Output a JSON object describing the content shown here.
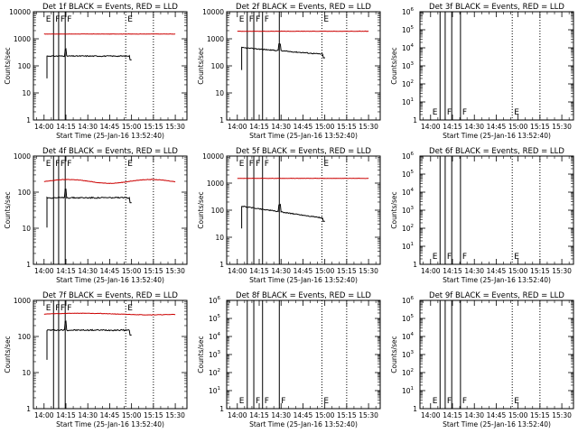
{
  "common": {
    "xlabel": "Start Time (25-Jan-16 13:52:40)",
    "ylabel": "Counts/sec",
    "x_ticks": [
      "14:00",
      "14:15",
      "14:30",
      "14:45",
      "15:00",
      "15:15",
      "15:30"
    ],
    "line_colors": {
      "events": "#000000",
      "lld": "#cc0000"
    }
  },
  "chart_data": [
    {
      "type": "line",
      "title": "Det 1f BLACK = Events, RED = LLD",
      "scale": "log",
      "ylim": [
        1,
        10000
      ],
      "y_ticks": [
        "1",
        "10",
        "100",
        "1000",
        "10000"
      ],
      "lld_level": 1500,
      "lld_wave": 0,
      "lld_wave_amp": 0,
      "events_level": 230,
      "events_decay": 0,
      "spike_at": 14.8,
      "events_start": 2,
      "events_end": 60,
      "vlines_solid": [
        6.5,
        10.0,
        14.5
      ],
      "vlines_dotted": [
        56,
        75
      ],
      "markers": [
        {
          "x": 0,
          "text": "E"
        },
        {
          "x": 6.5,
          "text": "F"
        },
        {
          "x": 10.0,
          "text": "F"
        },
        {
          "x": 14.5,
          "text": "F"
        },
        {
          "x": 56,
          "text": "E"
        }
      ]
    },
    {
      "type": "line",
      "title": "Det 2f BLACK = Events, RED = LLD",
      "scale": "log",
      "ylim": [
        1,
        10000
      ],
      "y_ticks": [
        "1",
        "10",
        "100",
        "1000",
        "10000"
      ],
      "lld_level": 1900,
      "lld_wave": 0,
      "lld_wave_amp": 0,
      "events_level": 470,
      "events_decay": 0.25,
      "spike_at": 29.0,
      "events_start": 3,
      "events_end": 60,
      "vlines_solid": [
        6.8,
        11.3,
        17.3,
        28.8
      ],
      "vlines_dotted": [
        58,
        75
      ],
      "markers": [
        {
          "x": 0,
          "text": "E"
        },
        {
          "x": 6.8,
          "text": "F"
        },
        {
          "x": 11.3,
          "text": "F"
        },
        {
          "x": 17.3,
          "text": "F"
        },
        {
          "x": 58,
          "text": "E"
        }
      ]
    },
    {
      "type": "line",
      "title": "Det 3f BLACK = Events, RED = LLD",
      "scale": "log",
      "ylim": [
        1,
        1000000
      ],
      "y_ticks": [
        "1",
        "10^1",
        "10^2",
        "10^3",
        "10^4",
        "10^5",
        "10^6"
      ],
      "lld_level": null,
      "events_level": null,
      "vlines_solid": [
        6.5,
        10.0,
        14.5,
        20.5
      ],
      "vlines_dotted": [
        56,
        75
      ],
      "markers": [
        {
          "x": 0,
          "text": "E"
        },
        {
          "x": 10.0,
          "text": "F"
        },
        {
          "x": 20.5,
          "text": "F"
        },
        {
          "x": 56,
          "text": "E"
        }
      ]
    },
    {
      "type": "line",
      "title": "Det 4f BLACK = Events, RED = LLD",
      "scale": "log",
      "ylim": [
        1,
        1000
      ],
      "y_ticks": [
        "1",
        "10",
        "100",
        "1000"
      ],
      "lld_level": 200,
      "lld_wave": 0.05,
      "lld_wave_amp": 0.12,
      "events_level": 70,
      "events_decay": 0,
      "spike_at": 14.8,
      "events_start": 2,
      "events_end": 60,
      "vlines_solid": [
        6.5,
        10.0,
        14.5
      ],
      "vlines_dotted": [
        56,
        75
      ],
      "markers": [
        {
          "x": 0,
          "text": "E"
        },
        {
          "x": 6.5,
          "text": "F"
        },
        {
          "x": 10.0,
          "text": "F"
        },
        {
          "x": 14.5,
          "text": "F"
        },
        {
          "x": 56,
          "text": "E"
        }
      ]
    },
    {
      "type": "line",
      "title": "Det 5f BLACK = Events, RED = LLD",
      "scale": "log",
      "ylim": [
        1,
        10000
      ],
      "y_ticks": [
        "1",
        "10",
        "100",
        "1000",
        "10000"
      ],
      "lld_level": 1500,
      "lld_wave": 0,
      "lld_wave_amp": 0,
      "events_level": 140,
      "events_decay": 0.45,
      "spike_at": 29.0,
      "events_start": 3,
      "events_end": 60,
      "vlines_solid": [
        6.8,
        11.3,
        17.3,
        28.8
      ],
      "vlines_dotted": [
        58,
        75
      ],
      "markers": [
        {
          "x": 0,
          "text": "E"
        },
        {
          "x": 6.8,
          "text": "F"
        },
        {
          "x": 11.3,
          "text": "F"
        },
        {
          "x": 17.3,
          "text": "F"
        },
        {
          "x": 58,
          "text": "E"
        }
      ]
    },
    {
      "type": "line",
      "title": "Det 6f BLACK = Events, RED = LLD",
      "scale": "log",
      "ylim": [
        1,
        1000000
      ],
      "y_ticks": [
        "1",
        "10^1",
        "10^2",
        "10^3",
        "10^4",
        "10^5",
        "10^6"
      ],
      "lld_level": null,
      "events_level": null,
      "vlines_solid": [
        6.5,
        10.0,
        14.5,
        20.5
      ],
      "vlines_dotted": [
        56,
        75
      ],
      "markers": [
        {
          "x": 0,
          "text": "E"
        },
        {
          "x": 10.0,
          "text": "F"
        },
        {
          "x": 20.5,
          "text": "F"
        },
        {
          "x": 56,
          "text": "E"
        }
      ]
    },
    {
      "type": "line",
      "title": "Det 7f BLACK = Events, RED = LLD",
      "scale": "log",
      "ylim": [
        1,
        1000
      ],
      "y_ticks": [
        "1",
        "10",
        "100",
        "1000"
      ],
      "lld_level": 420,
      "lld_wave": 0.03,
      "lld_wave_amp": 0.05,
      "events_level": 150,
      "events_decay": 0,
      "spike_at": 14.8,
      "events_start": 2,
      "events_end": 60,
      "vlines_solid": [
        6.5,
        10.0,
        14.5
      ],
      "vlines_dotted": [
        56,
        75
      ],
      "markers": [
        {
          "x": 0,
          "text": "E"
        },
        {
          "x": 6.5,
          "text": "F"
        },
        {
          "x": 10.0,
          "text": "F"
        },
        {
          "x": 14.5,
          "text": "F"
        },
        {
          "x": 56,
          "text": "E"
        }
      ]
    },
    {
      "type": "line",
      "title": "Det 8f BLACK = Events, RED = LLD",
      "scale": "log",
      "ylim": [
        1,
        1000000
      ],
      "y_ticks": [
        "1",
        "10^1",
        "10^2",
        "10^3",
        "10^4",
        "10^5",
        "10^6"
      ],
      "lld_level": null,
      "events_level": null,
      "vlines_solid": [
        6.8,
        11.3,
        17.3,
        28.8
      ],
      "vlines_dotted": [
        58,
        75
      ],
      "markers": [
        {
          "x": 0,
          "text": "E"
        },
        {
          "x": 11.3,
          "text": "F"
        },
        {
          "x": 17.3,
          "text": "F"
        },
        {
          "x": 28.8,
          "text": "F"
        },
        {
          "x": 58,
          "text": "E"
        }
      ]
    },
    {
      "type": "line",
      "title": "Det 9f BLACK = Events, RED = LLD",
      "scale": "log",
      "ylim": [
        1,
        1000000
      ],
      "y_ticks": [
        "1",
        "10^1",
        "10^2",
        "10^3",
        "10^4",
        "10^5",
        "10^6"
      ],
      "lld_level": null,
      "events_level": null,
      "vlines_solid": [
        6.5,
        10.0,
        14.5,
        20.5
      ],
      "vlines_dotted": [
        56,
        75
      ],
      "markers": [
        {
          "x": 0,
          "text": "E"
        },
        {
          "x": 10.0,
          "text": "F"
        },
        {
          "x": 20.5,
          "text": "F"
        },
        {
          "x": 56,
          "text": "E"
        }
      ]
    }
  ]
}
